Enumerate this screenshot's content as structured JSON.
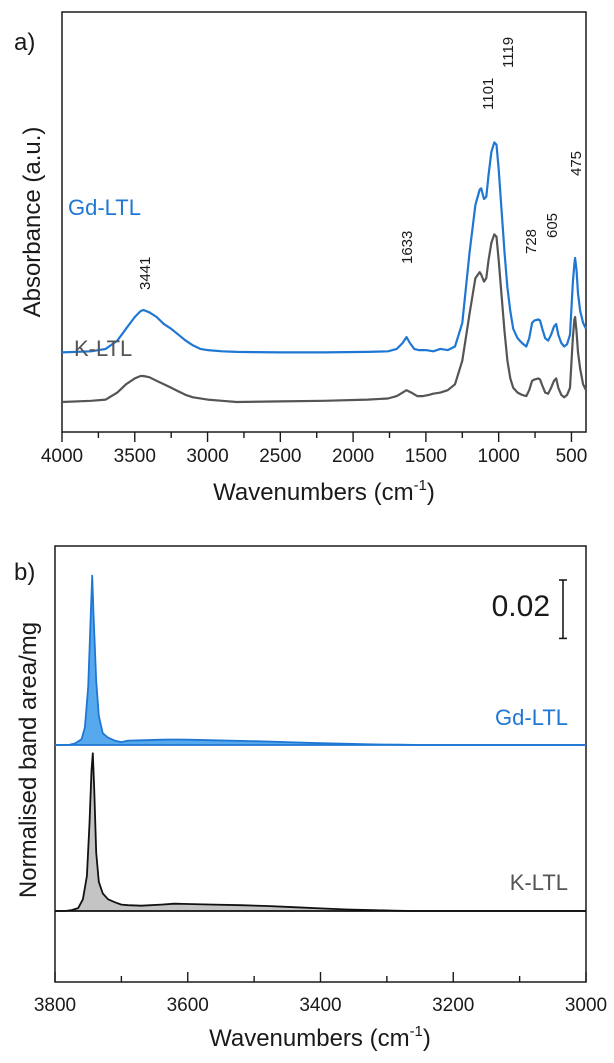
{
  "chart_data": [
    {
      "panel": "a)",
      "type": "line",
      "xlabel": "Wavenumbers (cm",
      "xlabel_sup": "-1",
      "ylabel": "Absorbance (a.u.)",
      "xlim": [
        4000,
        400
      ],
      "x_reversed": true,
      "x_ticks": [
        4000,
        3500,
        3000,
        2500,
        2000,
        1500,
        1000,
        500
      ],
      "colors": {
        "Gd-LTL": "#1f77d4",
        "K-LTL": "#555555"
      },
      "series": [
        {
          "name": "Gd-LTL",
          "offset": 0.42,
          "points": [
            [
              4000,
              0.0
            ],
            [
              3800,
              0.01
            ],
            [
              3700,
              0.03
            ],
            [
              3620,
              0.1
            ],
            [
              3560,
              0.2
            ],
            [
              3500,
              0.3
            ],
            [
              3460,
              0.35
            ],
            [
              3441,
              0.36
            ],
            [
              3400,
              0.34
            ],
            [
              3350,
              0.3
            ],
            [
              3300,
              0.24
            ],
            [
              3250,
              0.2
            ],
            [
              3200,
              0.15
            ],
            [
              3150,
              0.1
            ],
            [
              3100,
              0.06
            ],
            [
              3050,
              0.03
            ],
            [
              3000,
              0.02
            ],
            [
              2900,
              0.01
            ],
            [
              2800,
              0.005
            ],
            [
              2500,
              0.0
            ],
            [
              2200,
              0.0
            ],
            [
              1900,
              0.005
            ],
            [
              1760,
              0.01
            ],
            [
              1700,
              0.03
            ],
            [
              1660,
              0.08
            ],
            [
              1633,
              0.13
            ],
            [
              1610,
              0.08
            ],
            [
              1580,
              0.03
            ],
            [
              1550,
              0.02
            ],
            [
              1500,
              0.02
            ],
            [
              1450,
              0.01
            ],
            [
              1400,
              0.03
            ],
            [
              1350,
              0.02
            ],
            [
              1300,
              0.05
            ],
            [
              1250,
              0.25
            ],
            [
              1200,
              0.85
            ],
            [
              1160,
              1.25
            ],
            [
              1130,
              1.38
            ],
            [
              1120,
              1.39
            ],
            [
              1101,
              1.3
            ],
            [
              1085,
              1.32
            ],
            [
              1070,
              1.5
            ],
            [
              1050,
              1.7
            ],
            [
              1030,
              1.78
            ],
            [
              1015,
              1.76
            ],
            [
              1000,
              1.55
            ],
            [
              980,
              1.2
            ],
            [
              960,
              0.85
            ],
            [
              940,
              0.55
            ],
            [
              920,
              0.35
            ],
            [
              900,
              0.2
            ],
            [
              870,
              0.12
            ],
            [
              840,
              0.08
            ],
            [
              810,
              0.05
            ],
            [
              790,
              0.12
            ],
            [
              770,
              0.25
            ],
            [
              755,
              0.27
            ],
            [
              728,
              0.28
            ],
            [
              715,
              0.27
            ],
            [
              700,
              0.2
            ],
            [
              680,
              0.12
            ],
            [
              660,
              0.1
            ],
            [
              640,
              0.15
            ],
            [
              620,
              0.22
            ],
            [
              605,
              0.24
            ],
            [
              590,
              0.15
            ],
            [
              570,
              0.08
            ],
            [
              550,
              0.05
            ],
            [
              530,
              0.07
            ],
            [
              510,
              0.15
            ],
            [
              490,
              0.6
            ],
            [
              480,
              0.75
            ],
            [
              475,
              0.8
            ],
            [
              465,
              0.7
            ],
            [
              455,
              0.5
            ],
            [
              440,
              0.35
            ],
            [
              420,
              0.25
            ],
            [
              400,
              0.2
            ]
          ]
        },
        {
          "name": "K-LTL",
          "offset": 0.0,
          "points": [
            [
              4000,
              0.0
            ],
            [
              3800,
              0.01
            ],
            [
              3700,
              0.02
            ],
            [
              3620,
              0.08
            ],
            [
              3560,
              0.15
            ],
            [
              3500,
              0.2
            ],
            [
              3460,
              0.22
            ],
            [
              3441,
              0.22
            ],
            [
              3400,
              0.21
            ],
            [
              3350,
              0.18
            ],
            [
              3300,
              0.15
            ],
            [
              3250,
              0.12
            ],
            [
              3200,
              0.09
            ],
            [
              3150,
              0.06
            ],
            [
              3100,
              0.04
            ],
            [
              3000,
              0.02
            ],
            [
              2900,
              0.01
            ],
            [
              2800,
              0.0
            ],
            [
              2500,
              0.005
            ],
            [
              2200,
              0.01
            ],
            [
              1900,
              0.02
            ],
            [
              1760,
              0.03
            ],
            [
              1700,
              0.05
            ],
            [
              1660,
              0.08
            ],
            [
              1633,
              0.1
            ],
            [
              1600,
              0.08
            ],
            [
              1560,
              0.05
            ],
            [
              1520,
              0.05
            ],
            [
              1480,
              0.06
            ],
            [
              1450,
              0.07
            ],
            [
              1400,
              0.08
            ],
            [
              1350,
              0.1
            ],
            [
              1300,
              0.15
            ],
            [
              1250,
              0.35
            ],
            [
              1200,
              0.75
            ],
            [
              1160,
              1.05
            ],
            [
              1130,
              1.1
            ],
            [
              1120,
              1.08
            ],
            [
              1101,
              1.02
            ],
            [
              1085,
              1.05
            ],
            [
              1070,
              1.2
            ],
            [
              1050,
              1.35
            ],
            [
              1030,
              1.42
            ],
            [
              1015,
              1.4
            ],
            [
              1000,
              1.2
            ],
            [
              980,
              0.9
            ],
            [
              960,
              0.6
            ],
            [
              940,
              0.35
            ],
            [
              920,
              0.2
            ],
            [
              900,
              0.12
            ],
            [
              870,
              0.08
            ],
            [
              840,
              0.06
            ],
            [
              810,
              0.05
            ],
            [
              790,
              0.1
            ],
            [
              770,
              0.18
            ],
            [
              755,
              0.19
            ],
            [
              728,
              0.2
            ],
            [
              715,
              0.19
            ],
            [
              700,
              0.14
            ],
            [
              680,
              0.08
            ],
            [
              660,
              0.07
            ],
            [
              640,
              0.12
            ],
            [
              620,
              0.18
            ],
            [
              605,
              0.2
            ],
            [
              590,
              0.12
            ],
            [
              570,
              0.06
            ],
            [
              550,
              0.04
            ],
            [
              530,
              0.06
            ],
            [
              510,
              0.12
            ],
            [
              490,
              0.55
            ],
            [
              480,
              0.7
            ],
            [
              475,
              0.72
            ],
            [
              465,
              0.6
            ],
            [
              455,
              0.42
            ],
            [
              440,
              0.28
            ],
            [
              420,
              0.15
            ],
            [
              400,
              0.1
            ]
          ]
        }
      ],
      "annotations": [
        "3441",
        "1633",
        "1101",
        "1119",
        "728",
        "605",
        "475"
      ]
    },
    {
      "panel": "b)",
      "type": "area",
      "xlabel": "Wavenumbers (cm",
      "xlabel_sup": "-1",
      "ylabel": "Normalised band area/mg",
      "xlim": [
        3800,
        3000
      ],
      "x_reversed": true,
      "x_ticks": [
        3800,
        3600,
        3400,
        3200,
        3000
      ],
      "scale_bar_label": "0.02",
      "scale_bar_value": 0.02,
      "colors": {
        "Gd-LTL": "#1f77d4",
        "Gd-LTL-fill": "#57a9ee",
        "K-LTL": "#111111",
        "K-LTL-fill": "#c4c4c4"
      },
      "series": [
        {
          "name": "Gd-LTL",
          "points": [
            [
              3800,
              0.0
            ],
            [
              3780,
              0.0
            ],
            [
              3770,
              0.0005
            ],
            [
              3760,
              0.002
            ],
            [
              3755,
              0.006
            ],
            [
              3750,
              0.02
            ],
            [
              3746,
              0.045
            ],
            [
              3744,
              0.058
            ],
            [
              3742,
              0.045
            ],
            [
              3738,
              0.022
            ],
            [
              3734,
              0.01
            ],
            [
              3728,
              0.004
            ],
            [
              3720,
              0.0025
            ],
            [
              3710,
              0.0015
            ],
            [
              3700,
              0.001
            ],
            [
              3690,
              0.0015
            ],
            [
              3670,
              0.0016
            ],
            [
              3640,
              0.0018
            ],
            [
              3620,
              0.0019
            ],
            [
              3600,
              0.0018
            ],
            [
              3560,
              0.0016
            ],
            [
              3520,
              0.0014
            ],
            [
              3480,
              0.0012
            ],
            [
              3440,
              0.0009
            ],
            [
              3400,
              0.0006
            ],
            [
              3360,
              0.0004
            ],
            [
              3320,
              0.0002
            ],
            [
              3280,
              0.0001
            ],
            [
              3250,
              0.0
            ],
            [
              3000,
              0.0
            ]
          ]
        },
        {
          "name": "K-LTL",
          "points": [
            [
              3800,
              0.0
            ],
            [
              3785,
              0.0
            ],
            [
              3775,
              0.0003
            ],
            [
              3765,
              0.001
            ],
            [
              3758,
              0.004
            ],
            [
              3752,
              0.012
            ],
            [
              3748,
              0.03
            ],
            [
              3745,
              0.048
            ],
            [
              3743,
              0.054
            ],
            [
              3741,
              0.042
            ],
            [
              3738,
              0.02
            ],
            [
              3734,
              0.01
            ],
            [
              3728,
              0.006
            ],
            [
              3720,
              0.004
            ],
            [
              3710,
              0.003
            ],
            [
              3700,
              0.0022
            ],
            [
              3690,
              0.002
            ],
            [
              3670,
              0.0018
            ],
            [
              3640,
              0.0022
            ],
            [
              3620,
              0.0025
            ],
            [
              3600,
              0.0024
            ],
            [
              3560,
              0.0022
            ],
            [
              3520,
              0.002
            ],
            [
              3480,
              0.0017
            ],
            [
              3440,
              0.0013
            ],
            [
              3400,
              0.0009
            ],
            [
              3360,
              0.0005
            ],
            [
              3320,
              0.0003
            ],
            [
              3290,
              0.0001
            ],
            [
              3260,
              0.0
            ],
            [
              3000,
              0.0
            ]
          ]
        }
      ]
    }
  ]
}
